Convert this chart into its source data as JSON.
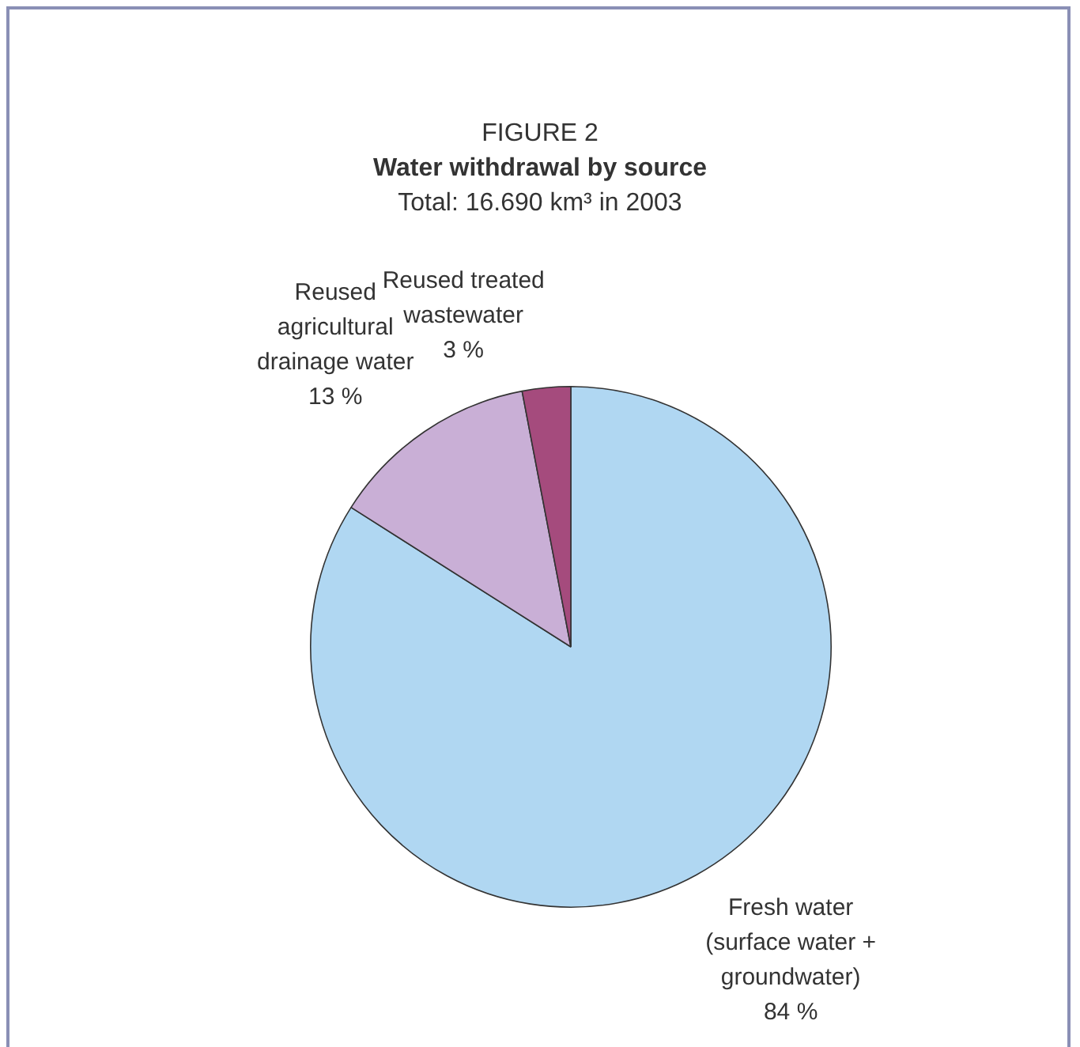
{
  "chart_data": {
    "type": "pie",
    "annotations": [
      "FIGURE 2"
    ],
    "title": "Water withdrawal by source",
    "subtitle": "Total: 16.690 km³ in 2003",
    "categories": [
      "Fresh water (surface water + groundwater)",
      "Reused agricultural drainage water",
      "Reused treated wastewater"
    ],
    "values": [
      84,
      13,
      3
    ],
    "value_labels": [
      "84 %",
      "13 %",
      "3 %"
    ],
    "colors": [
      "#b0d7f2",
      "#c9afd6",
      "#a54b7d"
    ],
    "legend": false
  }
}
